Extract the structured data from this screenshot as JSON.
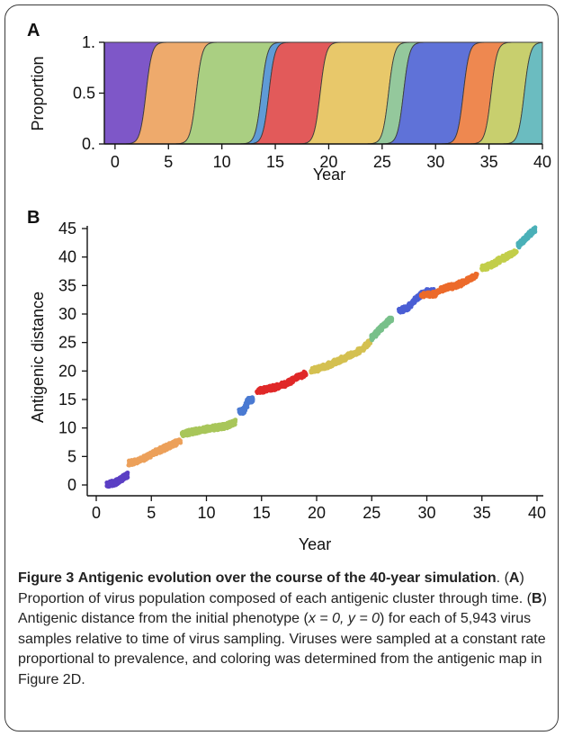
{
  "figure": {
    "caption_label": "Figure 3",
    "caption_title": "Antigenic evolution over the course of the 40-year simulation",
    "caption_a_letter": "A",
    "caption_a_text": "Proportion of virus population composed of each antigenic cluster through time.",
    "caption_b_letter": "B",
    "caption_b_text_1": "Antigenic distance from the initial phenotype (",
    "caption_b_text_2": ") for each of 5,943 virus samples relative to time of virus sampling. Viruses were sampled at a constant rate proportional to prevalence, and coloring was determined from the antigenic map in Figure 2D.",
    "caption_b_math": "x = 0, y = 0"
  },
  "chart_data": [
    {
      "panel": "A",
      "type": "area",
      "stacked": true,
      "xlabel": "Year",
      "ylabel": "Proportion",
      "xlim": [
        -1,
        40
      ],
      "ylim": [
        0,
        1
      ],
      "xticks": [
        "0",
        "5",
        "10",
        "15",
        "20",
        "25",
        "30",
        "35",
        "40"
      ],
      "yticks": [
        "0.",
        "0.5",
        "1."
      ],
      "clusters": [
        {
          "color": "#7e57c8",
          "start": -1,
          "end": 2.9
        },
        {
          "color": "#eeaa6c",
          "start": 2.9,
          "end": 7.6
        },
        {
          "color": "#aacf82",
          "start": 7.6,
          "end": 13.7
        },
        {
          "color": "#5f9bd6",
          "start": 13.7,
          "end": 14.4
        },
        {
          "color": "#e25a5a",
          "start": 14.4,
          "end": 19.2
        },
        {
          "color": "#e8c86a",
          "start": 19.2,
          "end": 25.6
        },
        {
          "color": "#94c89c",
          "start": 25.6,
          "end": 27.0
        },
        {
          "color": "#5f72d8",
          "start": 27.0,
          "end": 32.6
        },
        {
          "color": "#ee8850",
          "start": 32.6,
          "end": 35.2
        },
        {
          "color": "#c8cf6e",
          "start": 35.2,
          "end": 38.3
        },
        {
          "color": "#6bbcc0",
          "start": 38.3,
          "end": 40
        }
      ]
    },
    {
      "panel": "B",
      "type": "scatter",
      "xlabel": "Year",
      "ylabel": "Antigenic distance",
      "xlim": [
        0,
        40
      ],
      "ylim": [
        0,
        45
      ],
      "xticks": [
        "0",
        "5",
        "10",
        "15",
        "20",
        "25",
        "30",
        "35",
        "40"
      ],
      "yticks": [
        "0",
        "5",
        "10",
        "15",
        "20",
        "25",
        "30",
        "35",
        "40",
        "45"
      ],
      "total_samples": 5943,
      "series": [
        {
          "color": "#5b3fc4",
          "x": [
            1.0,
            1.3,
            1.7,
            2.1,
            2.4,
            2.8
          ],
          "y": [
            0.0,
            0.2,
            0.4,
            0.8,
            1.2,
            1.8
          ]
        },
        {
          "color": "#eca05a",
          "x": [
            3.0,
            3.8,
            4.5,
            5.2,
            6.0,
            6.8,
            7.6
          ],
          "y": [
            3.9,
            4.2,
            4.8,
            5.6,
            6.3,
            7.0,
            7.7
          ]
        },
        {
          "color": "#a8c65a",
          "x": [
            7.8,
            8.6,
            9.4,
            10.2,
            11.0,
            11.8,
            12.6
          ],
          "y": [
            8.9,
            9.3,
            9.6,
            9.9,
            10.1,
            10.3,
            11.1
          ]
        },
        {
          "color": "#4a7ad2",
          "x": [
            13.0,
            13.4,
            13.8,
            14.2
          ],
          "y": [
            12.8,
            13.0,
            14.8,
            15.0
          ]
        },
        {
          "color": "#e02828",
          "x": [
            14.6,
            15.5,
            16.4,
            17.3,
            18.1,
            19.0
          ],
          "y": [
            16.4,
            16.8,
            17.2,
            17.8,
            18.8,
            19.5
          ]
        },
        {
          "color": "#d4c050",
          "x": [
            19.5,
            20.4,
            21.3,
            22.2,
            23.1,
            24.0,
            24.8
          ],
          "y": [
            20.0,
            20.5,
            21.2,
            22.0,
            22.8,
            23.7,
            25.0
          ]
        },
        {
          "color": "#78c08a",
          "x": [
            25.0,
            25.6,
            26.2,
            26.8
          ],
          "y": [
            25.8,
            27.0,
            28.2,
            29.3
          ]
        },
        {
          "color": "#4a5ed4",
          "x": [
            27.5,
            28.3,
            29.1,
            29.9,
            30.6
          ],
          "y": [
            30.5,
            31.2,
            32.8,
            33.9,
            34.0
          ]
        },
        {
          "color": "#ec6a2a",
          "x": [
            29.5,
            30.7,
            31.7,
            32.7,
            33.6,
            34.5
          ],
          "y": [
            33.3,
            33.5,
            34.6,
            35.0,
            35.8,
            36.8
          ]
        },
        {
          "color": "#c2ce4a",
          "x": [
            35.0,
            35.8,
            36.6,
            37.4,
            38.1
          ],
          "y": [
            38.0,
            38.5,
            39.5,
            40.2,
            41.0
          ]
        },
        {
          "color": "#4ab0b8",
          "x": [
            38.3,
            38.8,
            39.3,
            39.8
          ],
          "y": [
            42.0,
            43.0,
            44.0,
            44.8
          ]
        }
      ]
    }
  ]
}
